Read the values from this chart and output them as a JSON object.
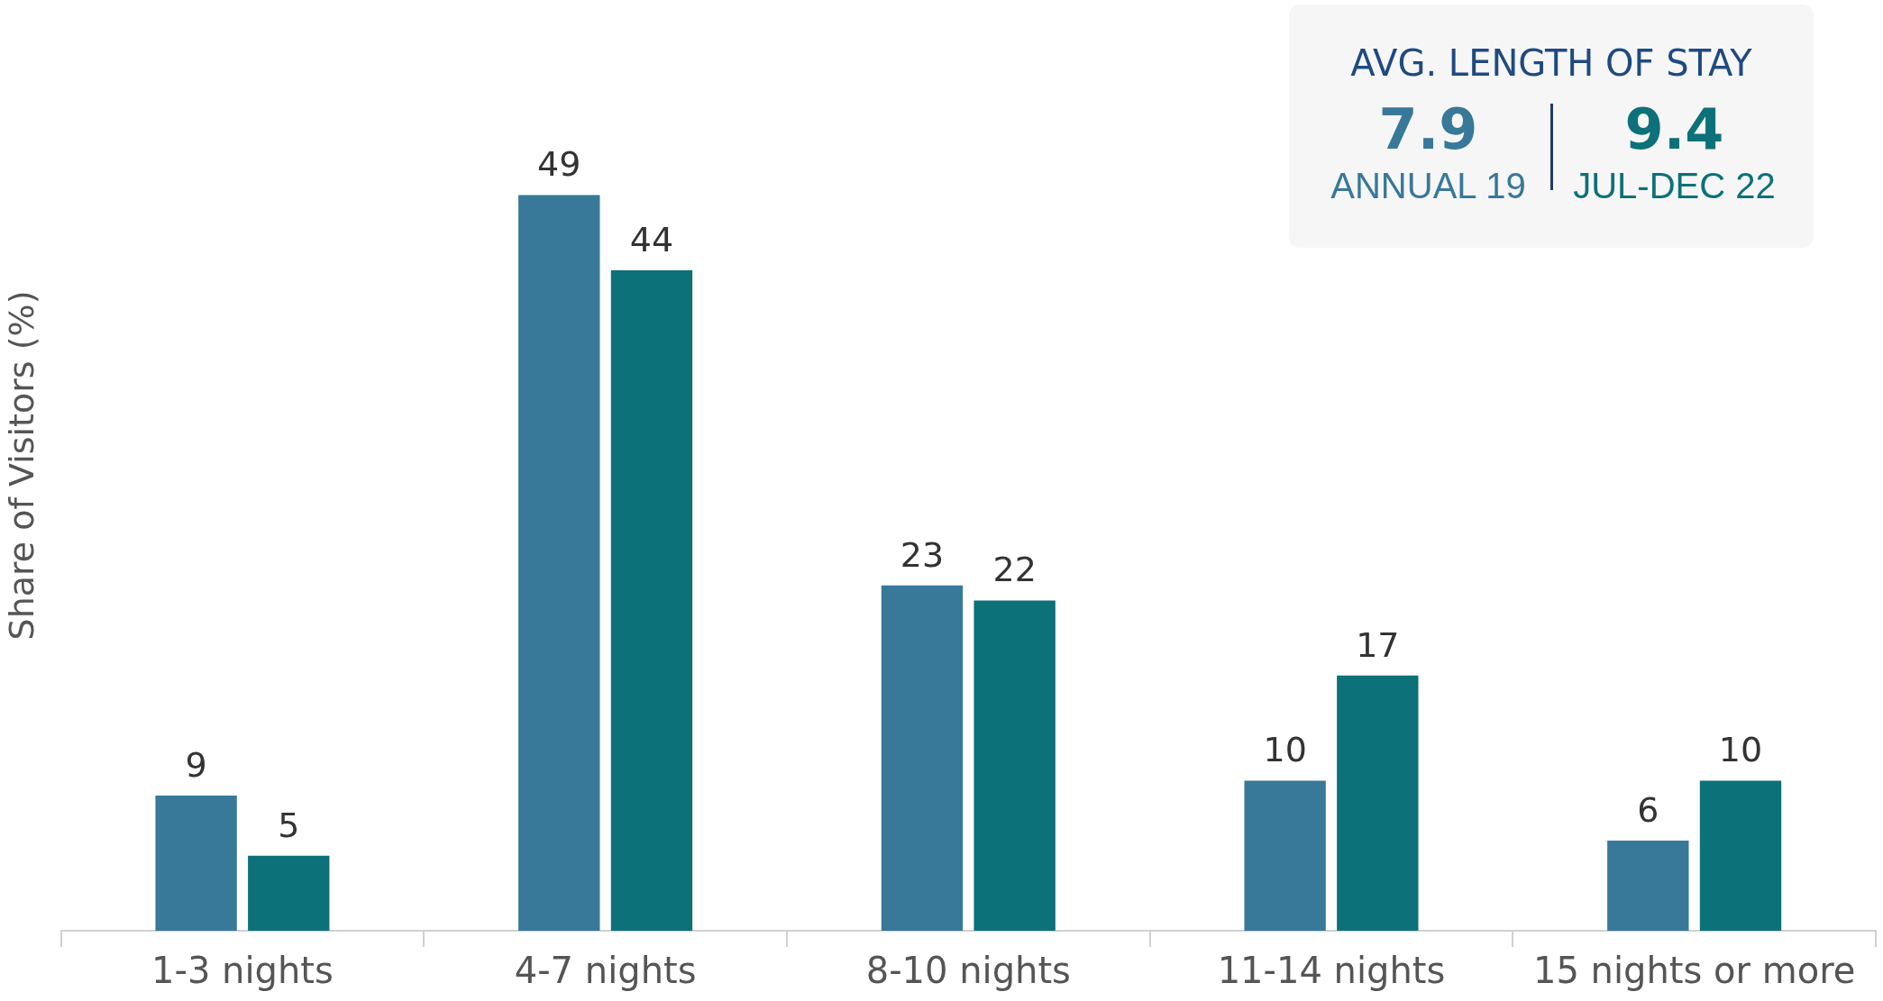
{
  "chart_data": {
    "type": "bar",
    "ylabel": "Share of Visitors (%)",
    "categories": [
      "1-3 nights",
      "4-7 nights",
      "8-10 nights",
      "11-14 nights",
      "15 nights or more"
    ],
    "series": [
      {
        "name": "ANNUAL 19",
        "color": "#387899",
        "values": [
          9,
          49,
          23,
          10,
          6
        ]
      },
      {
        "name": "JUL-DEC 22",
        "color": "#0c7178",
        "values": [
          5,
          44,
          22,
          17,
          10
        ]
      }
    ],
    "ylim": [
      0,
      62
    ],
    "tick_labels": "x",
    "data_labels": true,
    "legend": "top right",
    "annotations": [
      "AVG. LENGTH OF STAY",
      "7.9",
      "9.4"
    ]
  }
}
